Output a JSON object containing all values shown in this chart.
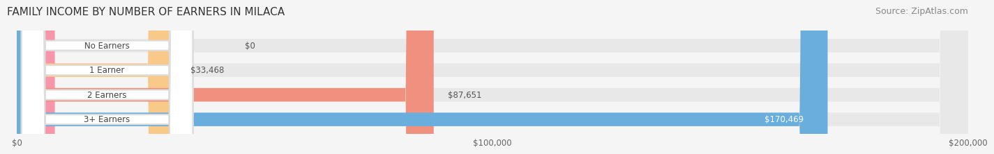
{
  "title": "FAMILY INCOME BY NUMBER OF EARNERS IN MILACA",
  "source": "Source: ZipAtlas.com",
  "categories": [
    "No Earners",
    "1 Earner",
    "2 Earners",
    "3+ Earners"
  ],
  "values": [
    0,
    33468,
    87651,
    170469
  ],
  "labels": [
    "$0",
    "$33,468",
    "$87,651",
    "$170,469"
  ],
  "bar_colors": [
    "#f895a8",
    "#f9c98a",
    "#f0907e",
    "#6aaedd"
  ],
  "bar_bg_color": "#e8e8e8",
  "bg_color": "#f5f5f5",
  "label_colors": [
    "#555555",
    "#555555",
    "#555555",
    "#ffffff"
  ],
  "max_value": 200000,
  "xtick_values": [
    0,
    100000,
    200000
  ],
  "xtick_labels": [
    "$0",
    "$100,000",
    "$200,000"
  ],
  "title_fontsize": 11,
  "source_fontsize": 9,
  "bar_height": 0.55,
  "bar_border_color": "#ffffff",
  "label_bg_color": "#ffffff",
  "label_text_color": "#555555"
}
